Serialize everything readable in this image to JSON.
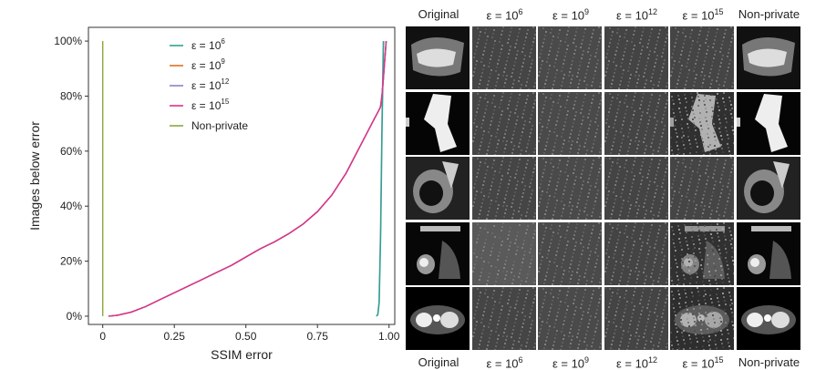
{
  "chart_data": {
    "type": "line",
    "xlabel": "SSIM error",
    "ylabel": "Images below error",
    "xlim": [
      -0.05,
      1.02
    ],
    "ylim": [
      -0.03,
      1.05
    ],
    "x_ticks": [
      {
        "value": 0,
        "label": "0"
      },
      {
        "value": 0.25,
        "label": "0.25"
      },
      {
        "value": 0.5,
        "label": "0.50"
      },
      {
        "value": 0.75,
        "label": "0.75"
      },
      {
        "value": 1.0,
        "label": "1.00"
      }
    ],
    "y_ticks": [
      {
        "value": 0,
        "label": "0%"
      },
      {
        "value": 0.2,
        "label": "20%"
      },
      {
        "value": 0.4,
        "label": "40%"
      },
      {
        "value": 0.6,
        "label": "60%"
      },
      {
        "value": 0.8,
        "label": "80%"
      },
      {
        "value": 1.0,
        "label": "100%"
      }
    ],
    "grid": false,
    "legend_position": "top-center",
    "series": [
      {
        "name": "ε = 10^6",
        "name_base": "ε = 10",
        "name_exp": "6",
        "color": "#2aa58a",
        "x": [
          0.02,
          0.05,
          0.1,
          0.15,
          0.2,
          0.25,
          0.3,
          0.35,
          0.4,
          0.45,
          0.5,
          0.55,
          0.6,
          0.65,
          0.7,
          0.75,
          0.8,
          0.85,
          0.9,
          0.93,
          0.95,
          0.96,
          0.97,
          0.975,
          0.98,
          0.985,
          0.99
        ],
        "y": [
          0.0,
          0.003,
          0.015,
          0.035,
          0.06,
          0.085,
          0.11,
          0.135,
          0.16,
          0.185,
          0.215,
          0.245,
          0.27,
          0.3,
          0.335,
          0.38,
          0.44,
          0.52,
          0.62,
          0.68,
          0.72,
          0.74,
          0.76,
          0.8,
          0.86,
          0.93,
          1.0
        ]
      },
      {
        "name": "ε = 10^9",
        "name_base": "ε = 10",
        "name_exp": "9",
        "color": "#e07020",
        "x": [
          0.02,
          0.05,
          0.1,
          0.15,
          0.2,
          0.25,
          0.3,
          0.35,
          0.4,
          0.45,
          0.5,
          0.55,
          0.6,
          0.65,
          0.7,
          0.75,
          0.8,
          0.85,
          0.9,
          0.93,
          0.95,
          0.96,
          0.97,
          0.975,
          0.98,
          0.985,
          0.99
        ],
        "y": [
          0.0,
          0.003,
          0.015,
          0.035,
          0.06,
          0.085,
          0.11,
          0.135,
          0.16,
          0.185,
          0.215,
          0.245,
          0.27,
          0.3,
          0.335,
          0.38,
          0.44,
          0.52,
          0.62,
          0.68,
          0.72,
          0.74,
          0.76,
          0.8,
          0.86,
          0.93,
          1.0
        ]
      },
      {
        "name": "ε = 10^12",
        "name_base": "ε = 10",
        "name_exp": "12",
        "color": "#8a80c8",
        "x": [
          0.02,
          0.05,
          0.1,
          0.15,
          0.2,
          0.25,
          0.3,
          0.35,
          0.4,
          0.45,
          0.5,
          0.55,
          0.6,
          0.65,
          0.7,
          0.75,
          0.8,
          0.85,
          0.9,
          0.93,
          0.95,
          0.96,
          0.97,
          0.975,
          0.98,
          0.985,
          0.99
        ],
        "y": [
          0.0,
          0.003,
          0.015,
          0.035,
          0.06,
          0.085,
          0.11,
          0.135,
          0.16,
          0.185,
          0.215,
          0.245,
          0.27,
          0.3,
          0.335,
          0.38,
          0.44,
          0.52,
          0.62,
          0.68,
          0.72,
          0.74,
          0.76,
          0.8,
          0.86,
          0.93,
          1.0
        ]
      },
      {
        "name": "ε = 10^15",
        "name_base": "ε = 10",
        "name_exp": "15",
        "color": "#e0308a",
        "x": [
          0.02,
          0.05,
          0.1,
          0.15,
          0.2,
          0.25,
          0.3,
          0.35,
          0.4,
          0.45,
          0.5,
          0.55,
          0.6,
          0.65,
          0.7,
          0.75,
          0.8,
          0.85,
          0.9,
          0.93,
          0.95,
          0.96,
          0.97,
          0.975,
          0.98,
          0.985,
          0.99
        ],
        "y": [
          0.0,
          0.003,
          0.015,
          0.035,
          0.06,
          0.085,
          0.11,
          0.135,
          0.16,
          0.185,
          0.215,
          0.245,
          0.27,
          0.3,
          0.335,
          0.38,
          0.44,
          0.52,
          0.62,
          0.68,
          0.72,
          0.74,
          0.76,
          0.8,
          0.86,
          0.93,
          1.0
        ]
      },
      {
        "name": "Non-private",
        "name_base": "Non-private",
        "name_exp": "",
        "color": "#8aa83a",
        "x": [
          0.0,
          0.0,
          0.0
        ],
        "y": [
          0.0,
          0.5,
          1.0
        ]
      }
    ],
    "extra_lines": [
      {
        "series": "ε = 10^12",
        "color": "#8a80c8",
        "x": [
          0.955,
          0.96,
          0.965,
          0.97,
          0.975,
          0.98
        ],
        "y": [
          0.0,
          0.005,
          0.05,
          0.3,
          0.7,
          1.0
        ]
      },
      {
        "series": "ε = 10^6",
        "color": "#2aa58a",
        "x": [
          0.956,
          0.961,
          0.966,
          0.971,
          0.976,
          0.981
        ],
        "y": [
          0.0,
          0.005,
          0.05,
          0.3,
          0.7,
          1.0
        ]
      }
    ]
  },
  "image_grid": {
    "headers": [
      {
        "base": "Original",
        "exp": ""
      },
      {
        "base": "ε = 10",
        "exp": "6"
      },
      {
        "base": "ε = 10",
        "exp": "9"
      },
      {
        "base": "ε = 10",
        "exp": "12"
      },
      {
        "base": "ε = 10",
        "exp": "15"
      },
      {
        "base": "Non-private",
        "exp": ""
      }
    ],
    "rows": 5
  }
}
